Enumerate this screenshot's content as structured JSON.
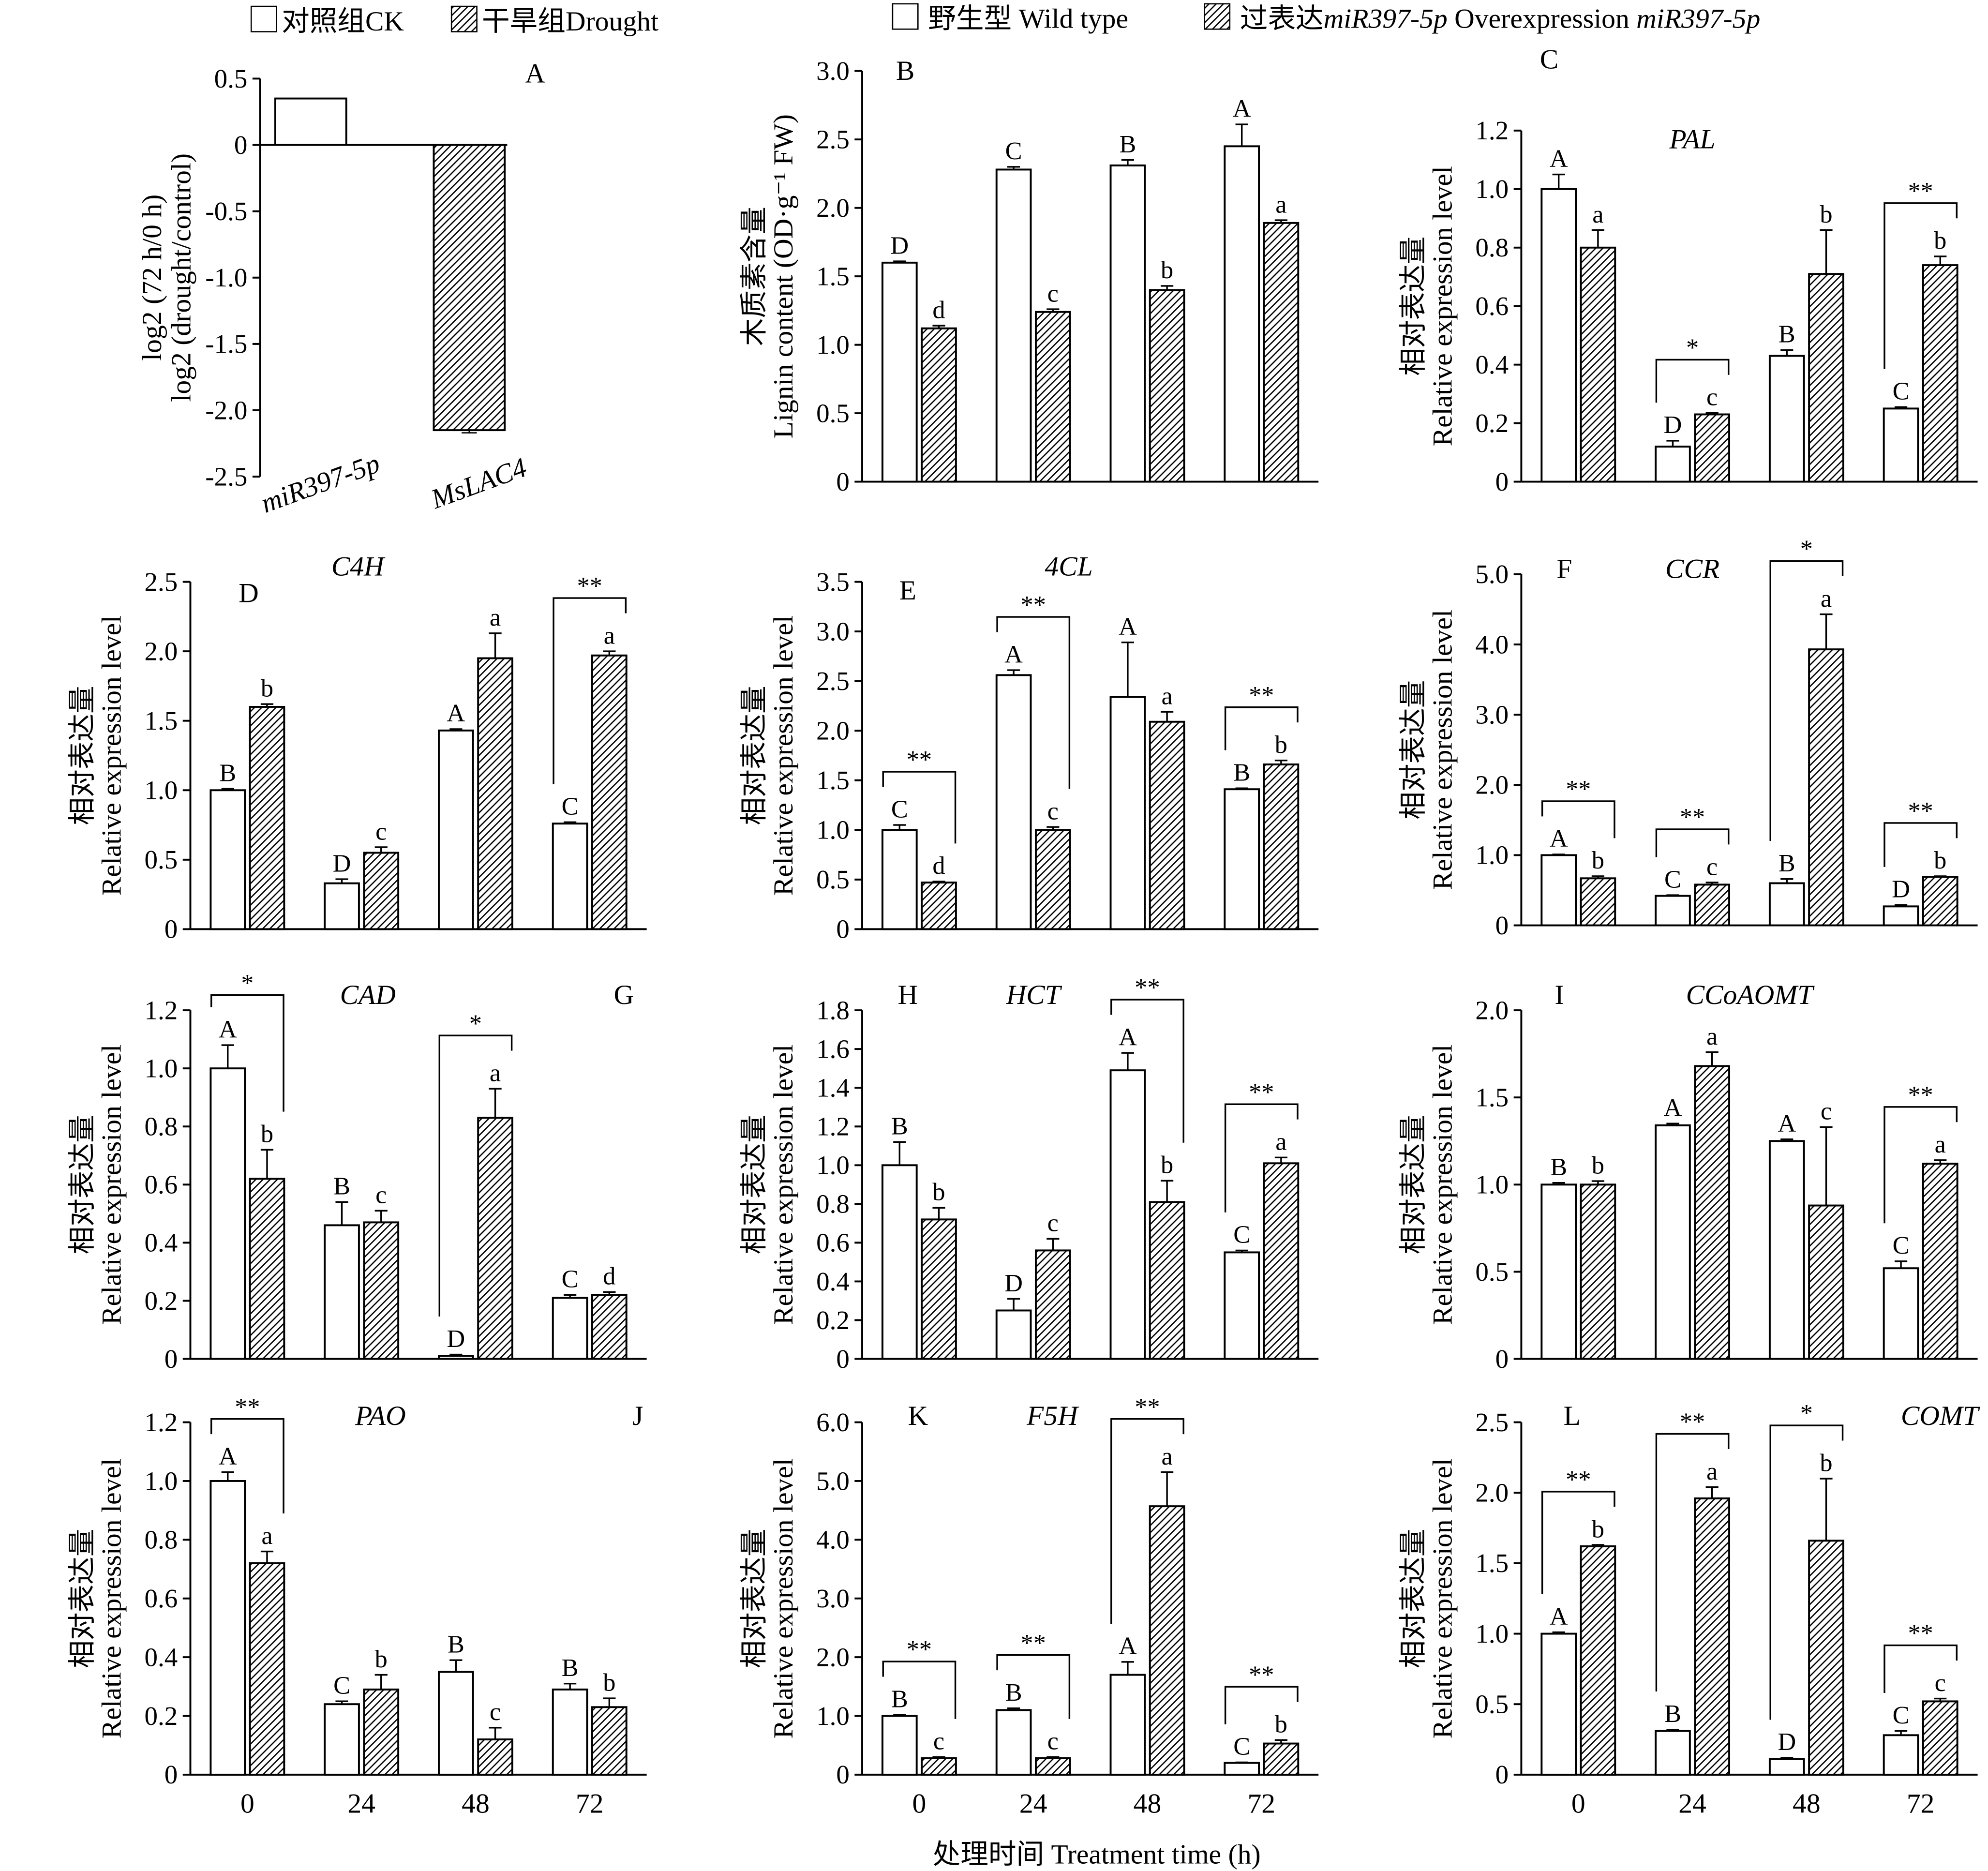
{
  "legend_drought": {
    "ck": "对照组CK",
    "drought": "干旱组Drought"
  },
  "legend_genotype": {
    "wt": "野生型 Wild type",
    "oe_cn": "过表达",
    "oe_gene1": "miR397-5p",
    "oe_en": " Overexpression ",
    "oe_gene2": "miR397-5p"
  },
  "x_label": "处理时间 Treatment time (h)",
  "chart_data": [
    {
      "panel": "A",
      "type": "bar",
      "title": "",
      "ylabel_cn": "log2 (72 h/0 h)",
      "ylabel": "log2 (drought/control)",
      "categories": [
        "miR397-5p",
        "MsLAC4"
      ],
      "values": [
        0.35,
        -2.15
      ],
      "errors": [
        0,
        0.02
      ],
      "ylim": [
        -2.5,
        0.5
      ],
      "yticks": [
        0.5,
        0,
        -0.5,
        -1.0,
        -1.5,
        -2.0,
        -2.5
      ],
      "ytick_labels": [
        "0.5",
        "0",
        "-0.5",
        "-1.0",
        "-1.5",
        "-2.0",
        "-2.5"
      ],
      "series_style": [
        "ck",
        "drought"
      ]
    },
    {
      "panel": "B",
      "type": "bar",
      "title": "",
      "ylabel_cn": "木质素含量",
      "ylabel": "Lignin content (OD·g⁻¹ FW)",
      "categories": [
        "0",
        "24",
        "48",
        "72"
      ],
      "ylim": [
        0,
        3.0
      ],
      "ytick_labels": [
        "0",
        "0.5",
        "1.0",
        "1.5",
        "2.0",
        "2.5",
        "3.0"
      ],
      "series": [
        {
          "name": "Wild type",
          "values": [
            1.6,
            2.28,
            2.31,
            2.45
          ],
          "errors": [
            0.01,
            0.02,
            0.04,
            0.16
          ],
          "letters": [
            "D",
            "C",
            "B",
            "A"
          ]
        },
        {
          "name": "Overexpression miR397-5p",
          "values": [
            1.12,
            1.24,
            1.4,
            1.89
          ],
          "errors": [
            0.02,
            0.02,
            0.03,
            0.02
          ],
          "letters": [
            "d",
            "c",
            "b",
            "a"
          ]
        }
      ],
      "significance": [
        "",
        "",
        "",
        ""
      ]
    },
    {
      "panel": "C",
      "type": "bar",
      "title": "PAL",
      "ylabel_cn": "相对表达量",
      "ylabel": "Relative expression level",
      "categories": [
        "0",
        "24",
        "48",
        "72"
      ],
      "ylim": [
        0,
        1.2
      ],
      "ytick_labels": [
        "0",
        "0.2",
        "0.4",
        "0.6",
        "0.8",
        "1.0",
        "1.2"
      ],
      "series": [
        {
          "name": "Wild type",
          "values": [
            1.0,
            0.12,
            0.43,
            0.25
          ],
          "errors": [
            0.05,
            0.02,
            0.02,
            0.005
          ],
          "letters": [
            "A",
            "D",
            "B",
            "C"
          ]
        },
        {
          "name": "Overexpression miR397-5p",
          "values": [
            0.8,
            0.23,
            0.71,
            0.74
          ],
          "errors": [
            0.06,
            0.005,
            0.15,
            0.03
          ],
          "letters": [
            "a",
            "c",
            "b",
            "b"
          ]
        }
      ],
      "significance": [
        "",
        "*",
        "",
        "**"
      ]
    },
    {
      "panel": "D",
      "type": "bar",
      "title": "C4H",
      "ylabel_cn": "相对表达量",
      "ylabel": "Relative expression level",
      "categories": [
        "0",
        "24",
        "48",
        "72"
      ],
      "ylim": [
        0,
        2.5
      ],
      "ytick_labels": [
        "0",
        "0.5",
        "1.0",
        "1.5",
        "2.0",
        "2.5"
      ],
      "series": [
        {
          "name": "Wild type",
          "values": [
            1.0,
            0.33,
            1.43,
            0.76
          ],
          "errors": [
            0.01,
            0.03,
            0.01,
            0.01
          ],
          "letters": [
            "B",
            "D",
            "A",
            "C"
          ]
        },
        {
          "name": "Overexpression miR397-5p",
          "values": [
            1.6,
            0.55,
            1.95,
            1.97
          ],
          "errors": [
            0.02,
            0.04,
            0.18,
            0.03
          ],
          "letters": [
            "b",
            "c",
            "a",
            "a"
          ]
        }
      ],
      "significance": [
        "",
        "",
        "",
        "**"
      ]
    },
    {
      "panel": "E",
      "type": "bar",
      "title": "4CL",
      "ylabel_cn": "相对表达量",
      "ylabel": "Relative expression level",
      "categories": [
        "0",
        "24",
        "48",
        "72"
      ],
      "ylim": [
        0,
        3.5
      ],
      "ytick_labels": [
        "0",
        "0.5",
        "1.0",
        "1.5",
        "2.0",
        "2.5",
        "3.0",
        "3.5"
      ],
      "series": [
        {
          "name": "Wild type",
          "values": [
            1.0,
            2.56,
            2.34,
            1.41
          ],
          "errors": [
            0.05,
            0.05,
            0.55,
            0.01
          ],
          "letters": [
            "C",
            "A",
            "A",
            "B"
          ]
        },
        {
          "name": "Overexpression miR397-5p",
          "values": [
            0.47,
            1.0,
            2.09,
            1.66
          ],
          "errors": [
            0.01,
            0.03,
            0.1,
            0.04
          ],
          "letters": [
            "d",
            "c",
            "a",
            "b"
          ]
        }
      ],
      "significance": [
        "**",
        "**",
        "",
        "**"
      ]
    },
    {
      "panel": "F",
      "type": "bar",
      "title": "CCR",
      "ylabel_cn": "相对表达量",
      "ylabel": "Relative expression level",
      "categories": [
        "0",
        "24",
        "48",
        "72"
      ],
      "ylim": [
        0,
        5.0
      ],
      "ytick_labels": [
        "0",
        "1.0",
        "2.0",
        "3.0",
        "4.0",
        "5.0"
      ],
      "series": [
        {
          "name": "Wild type",
          "values": [
            1.0,
            0.42,
            0.6,
            0.27
          ],
          "errors": [
            0.01,
            0.01,
            0.06,
            0.02
          ],
          "letters": [
            "A",
            "C",
            "B",
            "D"
          ]
        },
        {
          "name": "Overexpression miR397-5p",
          "values": [
            0.67,
            0.58,
            3.93,
            0.69
          ],
          "errors": [
            0.03,
            0.03,
            0.5,
            0.01
          ],
          "letters": [
            "b",
            "c",
            "a",
            "b"
          ]
        }
      ],
      "significance": [
        "**",
        "**",
        "*",
        "**"
      ]
    },
    {
      "panel": "G",
      "type": "bar",
      "title": "CAD",
      "ylabel_cn": "相对表达量",
      "ylabel": "Relative expression level",
      "categories": [
        "0",
        "24",
        "48",
        "72"
      ],
      "ylim": [
        0,
        1.2
      ],
      "ytick_labels": [
        "0",
        "0.2",
        "0.4",
        "0.6",
        "0.8",
        "1.0",
        "1.2"
      ],
      "series": [
        {
          "name": "Wild type",
          "values": [
            1.0,
            0.46,
            0.01,
            0.21
          ],
          "errors": [
            0.08,
            0.08,
            0.005,
            0.01
          ],
          "letters": [
            "A",
            "B",
            "D",
            "C"
          ]
        },
        {
          "name": "Overexpression miR397-5p",
          "values": [
            0.62,
            0.47,
            0.83,
            0.22
          ],
          "errors": [
            0.1,
            0.04,
            0.1,
            0.01
          ],
          "letters": [
            "b",
            "c",
            "a",
            "d"
          ]
        }
      ],
      "significance": [
        "*",
        "",
        "*",
        ""
      ]
    },
    {
      "panel": "H",
      "type": "bar",
      "title": "HCT",
      "ylabel_cn": "相对表达量",
      "ylabel": "Relative expression level",
      "categories": [
        "0",
        "24",
        "48",
        "72"
      ],
      "ylim": [
        0,
        1.8
      ],
      "ytick_labels": [
        "0",
        "0.2",
        "0.4",
        "0.6",
        "0.8",
        "1.0",
        "1.2",
        "1.4",
        "1.6",
        "1.8"
      ],
      "series": [
        {
          "name": "Wild type",
          "values": [
            1.0,
            0.25,
            1.49,
            0.55
          ],
          "errors": [
            0.12,
            0.06,
            0.09,
            0.01
          ],
          "letters": [
            "B",
            "D",
            "A",
            "C"
          ]
        },
        {
          "name": "Overexpression miR397-5p",
          "values": [
            0.72,
            0.56,
            0.81,
            1.01
          ],
          "errors": [
            0.06,
            0.06,
            0.11,
            0.03
          ],
          "letters": [
            "b",
            "c",
            "b",
            "a"
          ]
        }
      ],
      "significance": [
        "",
        "",
        "**",
        "**"
      ]
    },
    {
      "panel": "I",
      "type": "bar",
      "title": "CCoAOMT",
      "ylabel_cn": "相对表达量",
      "ylabel": "Relative expression level",
      "categories": [
        "0",
        "24",
        "48",
        "72"
      ],
      "ylim": [
        0,
        2.0
      ],
      "ytick_labels": [
        "0",
        "0.5",
        "1.0",
        "1.5",
        "2.0"
      ],
      "series": [
        {
          "name": "Wild type",
          "values": [
            1.0,
            1.34,
            1.25,
            0.52
          ],
          "errors": [
            0.01,
            0.01,
            0.01,
            0.04
          ],
          "letters": [
            "B",
            "A",
            "A",
            "C"
          ]
        },
        {
          "name": "Overexpression miR397-5p",
          "values": [
            1.0,
            1.68,
            0.88,
            1.12
          ],
          "errors": [
            0.02,
            0.08,
            0.45,
            0.02
          ],
          "letters": [
            "b",
            "a",
            "c",
            "a"
          ]
        }
      ],
      "significance": [
        "",
        "",
        "",
        "**"
      ]
    },
    {
      "panel": "J",
      "type": "bar",
      "title": "PAO",
      "ylabel_cn": "相对表达量",
      "ylabel": "Relative expression level",
      "categories": [
        "0",
        "24",
        "48",
        "72"
      ],
      "ylim": [
        0,
        1.2
      ],
      "ytick_labels": [
        "0",
        "0.2",
        "0.4",
        "0.6",
        "0.8",
        "1.0",
        "1.2"
      ],
      "series": [
        {
          "name": "Wild type",
          "values": [
            1.0,
            0.24,
            0.35,
            0.29
          ],
          "errors": [
            0.03,
            0.01,
            0.04,
            0.02
          ],
          "letters": [
            "A",
            "C",
            "B",
            "B"
          ]
        },
        {
          "name": "Overexpression miR397-5p",
          "values": [
            0.72,
            0.29,
            0.12,
            0.23
          ],
          "errors": [
            0.04,
            0.05,
            0.04,
            0.03
          ],
          "letters": [
            "a",
            "b",
            "c",
            "b"
          ]
        }
      ],
      "significance": [
        "**",
        "",
        "",
        ""
      ]
    },
    {
      "panel": "K",
      "type": "bar",
      "title": "F5H",
      "ylabel_cn": "相对表达量",
      "ylabel": "Relative expression level",
      "categories": [
        "0",
        "24",
        "48",
        "72"
      ],
      "ylim": [
        0,
        6.0
      ],
      "ytick_labels": [
        "0",
        "1.0",
        "2.0",
        "3.0",
        "4.0",
        "5.0",
        "6.0"
      ],
      "series": [
        {
          "name": "Wild type",
          "values": [
            1.0,
            1.1,
            1.7,
            0.2
          ],
          "errors": [
            0.02,
            0.03,
            0.22,
            0.01
          ],
          "letters": [
            "B",
            "B",
            "A",
            "C"
          ]
        },
        {
          "name": "Overexpression miR397-5p",
          "values": [
            0.28,
            0.28,
            4.57,
            0.53
          ],
          "errors": [
            0.02,
            0.02,
            0.58,
            0.06
          ],
          "letters": [
            "c",
            "c",
            "a",
            "b"
          ]
        }
      ],
      "significance": [
        "**",
        "**",
        "**",
        "**"
      ]
    },
    {
      "panel": "L",
      "type": "bar",
      "title": "COMT",
      "ylabel_cn": "相对表达量",
      "ylabel": "Relative expression level",
      "categories": [
        "0",
        "24",
        "48",
        "72"
      ],
      "ylim": [
        0,
        2.5
      ],
      "ytick_labels": [
        "0",
        "0.5",
        "1.0",
        "1.5",
        "2.0",
        "2.5"
      ],
      "series": [
        {
          "name": "Wild type",
          "values": [
            1.0,
            0.31,
            0.11,
            0.28
          ],
          "errors": [
            0.01,
            0.01,
            0.01,
            0.03
          ],
          "letters": [
            "A",
            "B",
            "D",
            "C"
          ]
        },
        {
          "name": "Overexpression miR397-5p",
          "values": [
            1.62,
            1.96,
            1.66,
            0.52
          ],
          "errors": [
            0.01,
            0.08,
            0.44,
            0.02
          ],
          "letters": [
            "b",
            "a",
            "b",
            "c"
          ]
        }
      ],
      "significance": [
        "**",
        "**",
        "*",
        "**"
      ]
    }
  ]
}
